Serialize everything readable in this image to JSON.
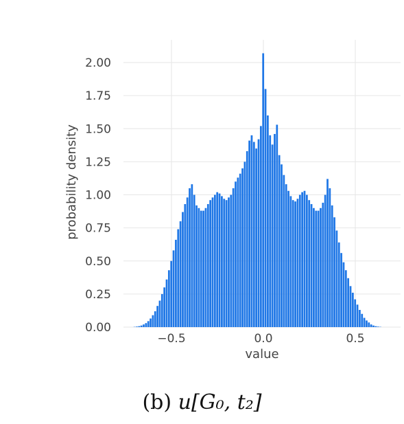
{
  "caption": {
    "prefix": "(b)",
    "symbol": "u[G₀, t₂]"
  },
  "chart_data": {
    "type": "bar",
    "title": "",
    "xlabel": "value",
    "ylabel": "probability density",
    "xlim": [
      -0.76,
      0.76
    ],
    "ylim": [
      0,
      2.1
    ],
    "grid": true,
    "bar_color": "#1f77e6",
    "grid_color": "#e6e6e6",
    "text_color": "#444444",
    "xticks": [
      -0.5,
      0.0,
      0.5
    ],
    "xtick_labels": [
      "−0.5",
      "0.0",
      "0.5"
    ],
    "yticks": [
      0,
      0.25,
      0.5,
      0.75,
      1.0,
      1.25,
      1.5,
      1.75,
      2.0
    ],
    "ytick_labels": [
      "0.00",
      "0.25",
      "0.50",
      "0.75",
      "1.00",
      "1.25",
      "1.50",
      "1.75",
      "2.00"
    ],
    "bin_width": 0.0125,
    "bins": [
      [
        -0.7,
        0.002
      ],
      [
        -0.6875,
        0.004
      ],
      [
        -0.675,
        0.007
      ],
      [
        -0.6625,
        0.012
      ],
      [
        -0.65,
        0.02
      ],
      [
        -0.6375,
        0.03
      ],
      [
        -0.625,
        0.045
      ],
      [
        -0.6125,
        0.065
      ],
      [
        -0.6,
        0.09
      ],
      [
        -0.5875,
        0.12
      ],
      [
        -0.575,
        0.16
      ],
      [
        -0.5625,
        0.2
      ],
      [
        -0.55,
        0.25
      ],
      [
        -0.5375,
        0.3
      ],
      [
        -0.525,
        0.36
      ],
      [
        -0.5125,
        0.43
      ],
      [
        -0.5,
        0.5
      ],
      [
        -0.4875,
        0.58
      ],
      [
        -0.475,
        0.66
      ],
      [
        -0.4625,
        0.74
      ],
      [
        -0.45,
        0.8
      ],
      [
        -0.4375,
        0.87
      ],
      [
        -0.425,
        0.93
      ],
      [
        -0.4125,
        0.98
      ],
      [
        -0.4,
        1.05
      ],
      [
        -0.3875,
        1.08
      ],
      [
        -0.375,
        1.0
      ],
      [
        -0.3625,
        0.92
      ],
      [
        -0.35,
        0.9
      ],
      [
        -0.3375,
        0.88
      ],
      [
        -0.325,
        0.88
      ],
      [
        -0.3125,
        0.9
      ],
      [
        -0.3,
        0.93
      ],
      [
        -0.2875,
        0.96
      ],
      [
        -0.275,
        0.98
      ],
      [
        -0.2625,
        1.0
      ],
      [
        -0.25,
        1.02
      ],
      [
        -0.2375,
        1.01
      ],
      [
        -0.225,
        0.99
      ],
      [
        -0.2125,
        0.97
      ],
      [
        -0.2,
        0.96
      ],
      [
        -0.1875,
        0.98
      ],
      [
        -0.175,
        1.0
      ],
      [
        -0.1625,
        1.05
      ],
      [
        -0.15,
        1.1
      ],
      [
        -0.1375,
        1.13
      ],
      [
        -0.125,
        1.16
      ],
      [
        -0.1125,
        1.2
      ],
      [
        -0.1,
        1.25
      ],
      [
        -0.0875,
        1.33
      ],
      [
        -0.075,
        1.41
      ],
      [
        -0.0625,
        1.45
      ],
      [
        -0.05,
        1.4
      ],
      [
        -0.0375,
        1.35
      ],
      [
        -0.025,
        1.42
      ],
      [
        -0.0125,
        1.52
      ],
      [
        0.0,
        2.07
      ],
      [
        0.0125,
        1.8
      ],
      [
        0.025,
        1.6
      ],
      [
        0.0375,
        1.45
      ],
      [
        0.05,
        1.38
      ],
      [
        0.0625,
        1.46
      ],
      [
        0.075,
        1.53
      ],
      [
        0.0875,
        1.3
      ],
      [
        0.1,
        1.23
      ],
      [
        0.1125,
        1.15
      ],
      [
        0.125,
        1.08
      ],
      [
        0.1375,
        1.03
      ],
      [
        0.15,
        0.99
      ],
      [
        0.1625,
        0.96
      ],
      [
        0.175,
        0.95
      ],
      [
        0.1875,
        0.97
      ],
      [
        0.2,
        1.0
      ],
      [
        0.2125,
        1.02
      ],
      [
        0.225,
        1.03
      ],
      [
        0.2375,
        1.0
      ],
      [
        0.25,
        0.96
      ],
      [
        0.2625,
        0.93
      ],
      [
        0.275,
        0.9
      ],
      [
        0.2875,
        0.88
      ],
      [
        0.3,
        0.88
      ],
      [
        0.3125,
        0.9
      ],
      [
        0.325,
        0.94
      ],
      [
        0.3375,
        1.0
      ],
      [
        0.35,
        1.12
      ],
      [
        0.3625,
        1.05
      ],
      [
        0.375,
        0.92
      ],
      [
        0.3875,
        0.83
      ],
      [
        0.4,
        0.73
      ],
      [
        0.4125,
        0.64
      ],
      [
        0.425,
        0.56
      ],
      [
        0.4375,
        0.49
      ],
      [
        0.45,
        0.43
      ],
      [
        0.4625,
        0.37
      ],
      [
        0.475,
        0.31
      ],
      [
        0.4875,
        0.26
      ],
      [
        0.5,
        0.21
      ],
      [
        0.5125,
        0.17
      ],
      [
        0.525,
        0.13
      ],
      [
        0.5375,
        0.1
      ],
      [
        0.55,
        0.07
      ],
      [
        0.5625,
        0.05
      ],
      [
        0.575,
        0.035
      ],
      [
        0.5875,
        0.02
      ],
      [
        0.6,
        0.012
      ],
      [
        0.6125,
        0.007
      ],
      [
        0.625,
        0.004
      ],
      [
        0.6375,
        0.002
      ]
    ]
  }
}
